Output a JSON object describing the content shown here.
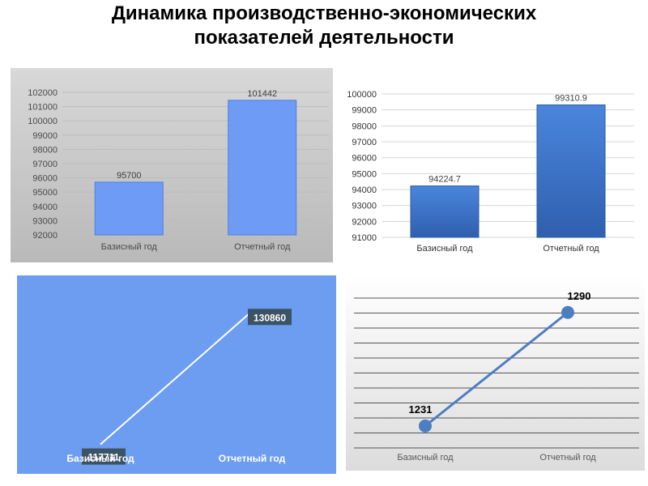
{
  "page": {
    "title_line1": "Динамика производственно-экономических",
    "title_line2": "показателей деятельности"
  },
  "colors": {
    "bar_light": "#6e9bf6",
    "bar_dark": "#3a74c9",
    "panel1_bg": "#c8c8c8",
    "panel3_bg": "#6d9df0",
    "line4": "#4c7ec2"
  },
  "chart_data": [
    {
      "type": "bar",
      "categories": [
        "Базисный год",
        "Отчетный год"
      ],
      "values": [
        95700,
        101442
      ],
      "data_labels": [
        "95700",
        "101442"
      ],
      "ylim": [
        92000,
        102000
      ],
      "yticks": [
        "92000",
        "93000",
        "94000",
        "95000",
        "96000",
        "97000",
        "98000",
        "99000",
        "100000",
        "101000",
        "102000"
      ],
      "grid": true
    },
    {
      "type": "bar",
      "categories": [
        "Базисный год",
        "Отчетный год"
      ],
      "values": [
        94224.7,
        99310.9
      ],
      "data_labels": [
        "94224.7",
        "99310.9"
      ],
      "ylim": [
        91000,
        100000
      ],
      "yticks": [
        "91000",
        "92000",
        "93000",
        "94000",
        "95000",
        "96000",
        "97000",
        "98000",
        "99000",
        "100000"
      ],
      "grid": true
    },
    {
      "type": "line",
      "categories": [
        "Базисный год",
        "Отчетный год"
      ],
      "values": [
        117711,
        130860
      ],
      "data_labels": [
        "117711",
        "130860"
      ],
      "grid": false
    },
    {
      "type": "line",
      "categories": [
        "Базисный год",
        "Отчетный год"
      ],
      "values": [
        1231,
        1290
      ],
      "data_labels": [
        "1231",
        "1290"
      ],
      "grid": true
    }
  ]
}
